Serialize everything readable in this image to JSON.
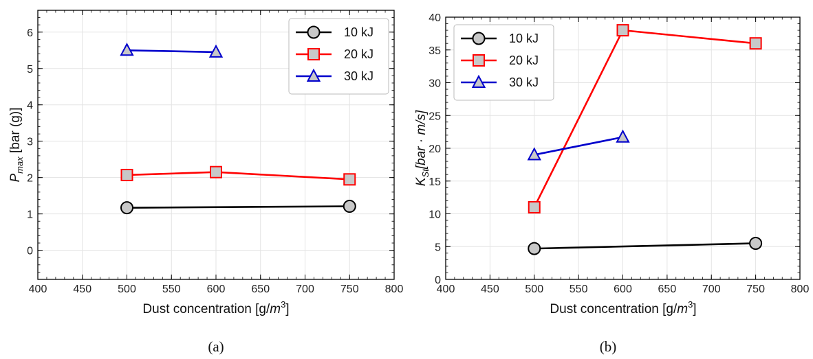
{
  "captions": [
    "(a)",
    "(b)"
  ],
  "colors": {
    "10 kJ": "#000000",
    "20 kJ": "#ff0000",
    "30 kJ": "#0000cc",
    "marker_fill": "#c8c8c8",
    "grid": "#e3e3e3"
  },
  "chart_data": [
    {
      "type": "line",
      "xlabel": "Dust concentration [g/m³]",
      "ylabel": "P_max [bar (g)]",
      "xlim": [
        400,
        800
      ],
      "ylim": [
        -0.8,
        6.6
      ],
      "xticks": [
        "400",
        "450",
        "500",
        "550",
        "600",
        "650",
        "700",
        "750",
        "800"
      ],
      "yticks": [
        "0",
        "1",
        "2",
        "3",
        "4",
        "5",
        "6"
      ],
      "grid": true,
      "legend": "top-right",
      "series": [
        {
          "name": "10 kJ",
          "marker": "circle",
          "x": [
            500,
            750
          ],
          "y": [
            1.17,
            1.21
          ]
        },
        {
          "name": "20 kJ",
          "marker": "square",
          "x": [
            500,
            600,
            750
          ],
          "y": [
            2.07,
            2.15,
            1.95
          ]
        },
        {
          "name": "30 kJ",
          "marker": "triangle",
          "x": [
            500,
            600
          ],
          "y": [
            5.5,
            5.45
          ]
        }
      ]
    },
    {
      "type": "line",
      "xlabel": "Dust concentration [g/m³]",
      "ylabel": "K_St [bar · m/s]",
      "xlim": [
        400,
        800
      ],
      "ylim": [
        0,
        40
      ],
      "xticks": [
        "400",
        "450",
        "500",
        "550",
        "600",
        "650",
        "700",
        "750",
        "800"
      ],
      "yticks": [
        "0",
        "5",
        "10",
        "15",
        "20",
        "25",
        "30",
        "35",
        "40"
      ],
      "grid": true,
      "legend": "top-left",
      "series": [
        {
          "name": "10 kJ",
          "marker": "circle",
          "x": [
            500,
            750
          ],
          "y": [
            4.7,
            5.5
          ]
        },
        {
          "name": "20 kJ",
          "marker": "square",
          "x": [
            500,
            600,
            750
          ],
          "y": [
            11.0,
            38.0,
            36.0
          ]
        },
        {
          "name": "30 kJ",
          "marker": "triangle",
          "x": [
            500,
            600
          ],
          "y": [
            19.0,
            21.7
          ]
        }
      ]
    }
  ]
}
